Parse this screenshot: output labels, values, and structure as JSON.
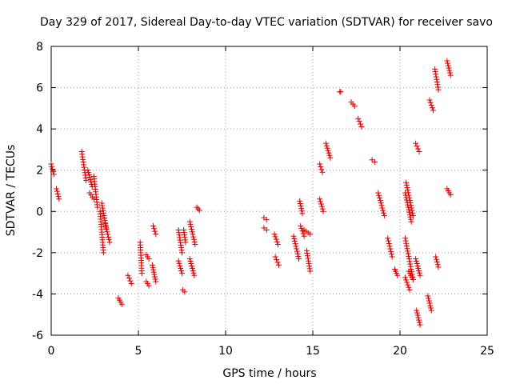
{
  "chart_data": {
    "type": "scatter",
    "title": "Day 329 of 2017, Sidereal Day-to-day VTEC variation (SDTVAR) for receiver savo",
    "xlabel": "GPS time / hours",
    "ylabel": "SDTVAR / TECUs",
    "xlim": [
      0,
      25
    ],
    "ylim": [
      -6,
      8
    ],
    "xticks": [
      0,
      5,
      10,
      15,
      20,
      25
    ],
    "yticks": [
      -6,
      -4,
      -2,
      0,
      2,
      4,
      6,
      8
    ],
    "grid": true,
    "marker": "+",
    "color": "#e00000",
    "segments": [
      {
        "x0": 0.0,
        "x1": 0.15,
        "y0": 2.3,
        "y1": 1.8
      },
      {
        "x0": 0.3,
        "x1": 0.45,
        "y0": 1.1,
        "y1": 0.6
      },
      {
        "x0": 1.75,
        "x1": 2.0,
        "y0": 2.9,
        "y1": 1.5
      },
      {
        "x0": 2.1,
        "x1": 2.35,
        "y0": 2.0,
        "y1": 1.2
      },
      {
        "x0": 2.2,
        "x1": 2.45,
        "y0": 0.9,
        "y1": 0.6
      },
      {
        "x0": 2.45,
        "x1": 2.65,
        "y0": 1.7,
        "y1": 0.2
      },
      {
        "x0": 2.8,
        "x1": 3.0,
        "y0": 0.0,
        "y1": -2.0
      },
      {
        "x0": 2.9,
        "x1": 3.15,
        "y0": 0.4,
        "y1": -0.8
      },
      {
        "x0": 3.1,
        "x1": 3.35,
        "y0": -0.6,
        "y1": -1.5
      },
      {
        "x0": 3.85,
        "x1": 4.05,
        "y0": -4.2,
        "y1": -4.5
      },
      {
        "x0": 4.4,
        "x1": 4.6,
        "y0": -3.1,
        "y1": -3.5
      },
      {
        "x0": 5.1,
        "x1": 5.2,
        "y0": -1.5,
        "y1": -3.0
      },
      {
        "x0": 5.45,
        "x1": 5.6,
        "y0": -2.1,
        "y1": -2.3
      },
      {
        "x0": 5.45,
        "x1": 5.6,
        "y0": -3.4,
        "y1": -3.6
      },
      {
        "x0": 5.8,
        "x1": 6.0,
        "y0": -2.6,
        "y1": -3.4
      },
      {
        "x0": 5.85,
        "x1": 6.0,
        "y0": -0.7,
        "y1": -1.1
      },
      {
        "x0": 7.3,
        "x1": 7.5,
        "y0": -0.9,
        "y1": -2.0
      },
      {
        "x0": 7.3,
        "x1": 7.5,
        "y0": -2.4,
        "y1": -3.0
      },
      {
        "x0": 7.55,
        "x1": 7.65,
        "y0": -3.8,
        "y1": -3.9
      },
      {
        "x0": 7.6,
        "x1": 7.7,
        "y0": -0.9,
        "y1": -1.5
      },
      {
        "x0": 7.95,
        "x1": 8.25,
        "y0": -0.5,
        "y1": -1.6
      },
      {
        "x0": 7.95,
        "x1": 8.2,
        "y0": -2.3,
        "y1": -3.1
      },
      {
        "x0": 8.35,
        "x1": 8.5,
        "y0": 0.2,
        "y1": 0.05
      },
      {
        "x0": 12.2,
        "x1": 12.35,
        "y0": -0.3,
        "y1": -0.4
      },
      {
        "x0": 12.2,
        "x1": 12.35,
        "y0": -0.8,
        "y1": -0.9
      },
      {
        "x0": 12.8,
        "x1": 13.0,
        "y0": -1.1,
        "y1": -1.6
      },
      {
        "x0": 12.85,
        "x1": 13.05,
        "y0": -2.2,
        "y1": -2.6
      },
      {
        "x0": 13.9,
        "x1": 14.2,
        "y0": -1.2,
        "y1": -2.3
      },
      {
        "x0": 14.25,
        "x1": 14.4,
        "y0": 0.5,
        "y1": -0.1
      },
      {
        "x0": 14.3,
        "x1": 14.5,
        "y0": -0.7,
        "y1": -1.2
      },
      {
        "x0": 14.5,
        "x1": 14.85,
        "y0": -0.9,
        "y1": -1.1
      },
      {
        "x0": 14.65,
        "x1": 14.85,
        "y0": -1.9,
        "y1": -2.9
      },
      {
        "x0": 15.4,
        "x1": 15.55,
        "y0": 2.3,
        "y1": 1.9
      },
      {
        "x0": 15.4,
        "x1": 15.6,
        "y0": 0.6,
        "y1": 0.0
      },
      {
        "x0": 15.75,
        "x1": 16.0,
        "y0": 3.3,
        "y1": 2.6
      },
      {
        "x0": 16.55,
        "x1": 16.6,
        "y0": 5.8,
        "y1": 5.8
      },
      {
        "x0": 17.2,
        "x1": 17.4,
        "y0": 5.3,
        "y1": 5.1
      },
      {
        "x0": 17.6,
        "x1": 17.8,
        "y0": 4.5,
        "y1": 4.1
      },
      {
        "x0": 18.4,
        "x1": 18.55,
        "y0": 2.5,
        "y1": 2.4
      },
      {
        "x0": 18.75,
        "x1": 19.1,
        "y0": 0.9,
        "y1": -0.2
      },
      {
        "x0": 19.3,
        "x1": 19.55,
        "y0": -1.3,
        "y1": -2.2
      },
      {
        "x0": 19.7,
        "x1": 19.85,
        "y0": -2.8,
        "y1": -3.1
      },
      {
        "x0": 20.3,
        "x1": 20.65,
        "y0": 0.9,
        "y1": -0.5
      },
      {
        "x0": 20.35,
        "x1": 20.75,
        "y0": 1.4,
        "y1": -0.2
      },
      {
        "x0": 20.3,
        "x1": 20.75,
        "y0": -1.3,
        "y1": -3.3
      },
      {
        "x0": 20.3,
        "x1": 20.55,
        "y0": -3.2,
        "y1": -3.8
      },
      {
        "x0": 20.5,
        "x1": 20.75,
        "y0": -2.9,
        "y1": -3.3
      },
      {
        "x0": 20.9,
        "x1": 21.1,
        "y0": 3.3,
        "y1": 2.9
      },
      {
        "x0": 20.9,
        "x1": 21.15,
        "y0": -2.3,
        "y1": -3.1
      },
      {
        "x0": 20.95,
        "x1": 21.15,
        "y0": -4.8,
        "y1": -5.5
      },
      {
        "x0": 21.6,
        "x1": 21.8,
        "y0": -4.1,
        "y1": -4.8
      },
      {
        "x0": 21.7,
        "x1": 21.9,
        "y0": 5.4,
        "y1": 4.9
      },
      {
        "x0": 22.0,
        "x1": 22.2,
        "y0": 6.9,
        "y1": 5.9
      },
      {
        "x0": 22.05,
        "x1": 22.2,
        "y0": -2.2,
        "y1": -2.7
      },
      {
        "x0": 22.7,
        "x1": 22.9,
        "y0": 7.3,
        "y1": 6.6
      },
      {
        "x0": 22.7,
        "x1": 22.9,
        "y0": 1.1,
        "y1": 0.8
      }
    ]
  }
}
